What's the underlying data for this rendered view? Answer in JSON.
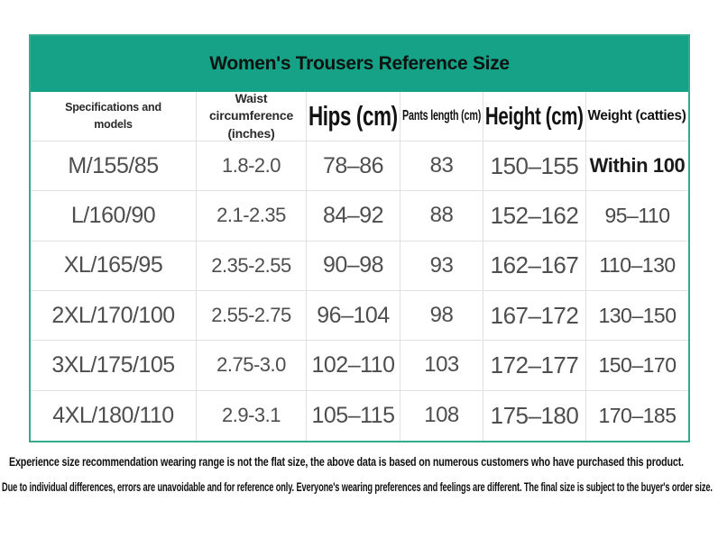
{
  "title": "Women's Trousers Reference Size",
  "colors": {
    "banner_bg": "#16a287",
    "outer_border": "#35aa8f",
    "grid_line": "#e1e1e1",
    "cell_text": "#4e4e4e",
    "title_text": "#0c1310"
  },
  "chart_data": {
    "type": "table",
    "title": "Women's Trousers Reference Size",
    "columns": [
      "Specifications and models",
      "Waist circumference (inches)",
      "Hips (cm)",
      "Pants length (cm)",
      "Height (cm)",
      "Weight (catties)"
    ],
    "rows": [
      [
        "M/155/85",
        "1.8-2.0",
        "78–86",
        "83",
        "150–155",
        "Within 100"
      ],
      [
        "L/160/90",
        "2.1-2.35",
        "84–92",
        "88",
        "152–162",
        "95–110"
      ],
      [
        "XL/165/95",
        "2.35-2.55",
        "90–98",
        "93",
        "162–167",
        "110–130"
      ],
      [
        "2XL/170/100",
        "2.55-2.75",
        "96–104",
        "98",
        "167–172",
        "130–150"
      ],
      [
        "3XL/175/105",
        "2.75-3.0",
        "102–110",
        "103",
        "172–177",
        "150–170"
      ],
      [
        "4XL/180/110",
        "2.9-3.1",
        "105–115",
        "108",
        "175–180",
        "170–185"
      ]
    ]
  },
  "header_display": {
    "col1_line1": "Specifications and",
    "col1_line2": "models",
    "col2_line1": "Waist circumference",
    "col2_line2": "(inches)",
    "col3": "Hips (cm)",
    "col4": "Pants length (cm)",
    "col5": "Height (cm)",
    "col6": "Weight (catties)"
  },
  "notes": [
    "Experience size recommendation wearing range is not the flat size, the above data is based on numerous customers who have purchased this product.",
    "Due to individual differences, errors are unavoidable and for reference only. Everyone's wearing preferences and feelings are different. The final size is subject to the buyer's order size."
  ]
}
